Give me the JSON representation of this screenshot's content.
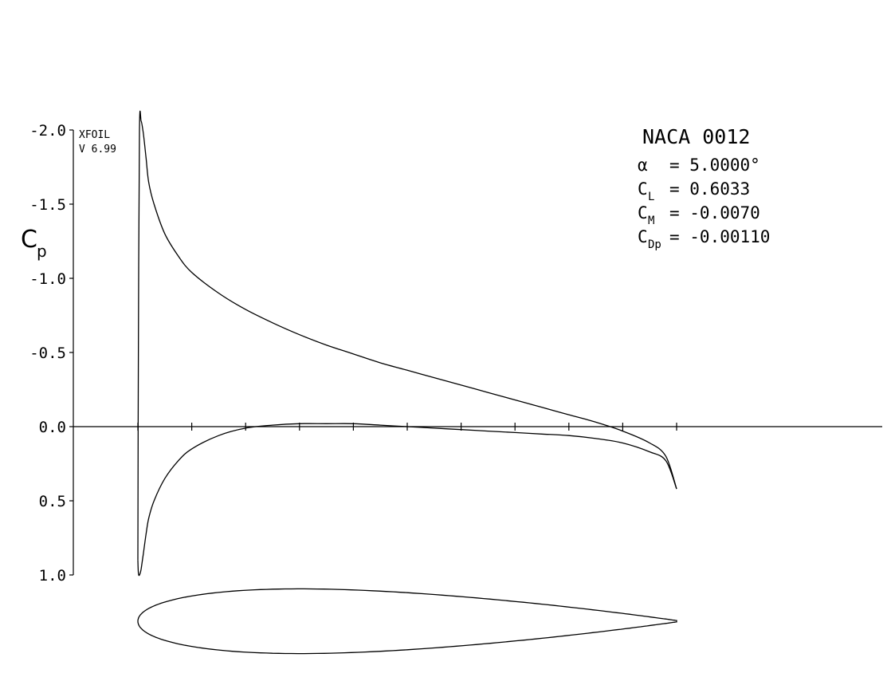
{
  "chart_data": {
    "type": "line",
    "title": "NACA 0012",
    "ylabel": "C",
    "ylabel_sub": "p",
    "ylim": [
      1.0,
      -2.0
    ],
    "y_inverted": true,
    "xlim": [
      0,
      1
    ],
    "y_ticks": [
      "-2.0",
      "-1.5",
      "-1.0",
      "-0.5",
      "0.0",
      "0.5",
      "1.0"
    ],
    "x_ticks": [
      0,
      0.1,
      0.2,
      0.3,
      0.4,
      0.5,
      0.6,
      0.7,
      0.8,
      0.9,
      1.0
    ],
    "grid": false,
    "series": [
      {
        "surface": "upper",
        "x": [
          0.0,
          0.001,
          0.003,
          0.006,
          0.01,
          0.015,
          0.02,
          0.03,
          0.05,
          0.075,
          0.1,
          0.15,
          0.2,
          0.25,
          0.3,
          0.35,
          0.4,
          0.45,
          0.5,
          0.55,
          0.6,
          0.65,
          0.7,
          0.75,
          0.8,
          0.85,
          0.9,
          0.95,
          0.98,
          1.0
        ],
        "y": [
          0.9,
          -0.6,
          -2.0,
          -2.06,
          -1.98,
          -1.82,
          -1.65,
          -1.5,
          -1.3,
          -1.15,
          -1.04,
          -0.9,
          -0.79,
          -0.7,
          -0.62,
          -0.55,
          -0.49,
          -0.43,
          -0.38,
          -0.33,
          -0.28,
          -0.23,
          -0.18,
          -0.13,
          -0.08,
          -0.03,
          0.03,
          0.11,
          0.2,
          0.42
        ]
      },
      {
        "surface": "lower",
        "x": [
          0.0,
          0.001,
          0.003,
          0.006,
          0.01,
          0.015,
          0.02,
          0.03,
          0.05,
          0.075,
          0.1,
          0.15,
          0.2,
          0.25,
          0.3,
          0.35,
          0.4,
          0.45,
          0.5,
          0.55,
          0.6,
          0.65,
          0.7,
          0.75,
          0.8,
          0.85,
          0.9,
          0.95,
          0.98,
          1.0
        ],
        "y": [
          0.9,
          0.99,
          1.0,
          0.96,
          0.86,
          0.73,
          0.62,
          0.5,
          0.35,
          0.23,
          0.15,
          0.06,
          0.01,
          -0.01,
          -0.02,
          -0.02,
          -0.02,
          -0.01,
          0.0,
          0.01,
          0.02,
          0.03,
          0.04,
          0.05,
          0.06,
          0.08,
          0.11,
          0.17,
          0.23,
          0.42
        ]
      }
    ],
    "airfoil": {
      "name": "NACA 0012",
      "thickness_ratio": 0.12
    }
  },
  "program": {
    "name": "XFOIL",
    "version": "V 6.99"
  },
  "results": {
    "title": "NACA 0012",
    "alpha": {
      "symbol": "α",
      "sub": "",
      "value": "=  5.0000°"
    },
    "cl": {
      "symbol": "C",
      "sub": "L",
      "value": "=  0.6033"
    },
    "cm": {
      "symbol": "C",
      "sub": "M",
      "value": "= -0.0070"
    },
    "cdp": {
      "symbol": "C",
      "sub": "Dp",
      "value": "= -0.00110"
    }
  }
}
